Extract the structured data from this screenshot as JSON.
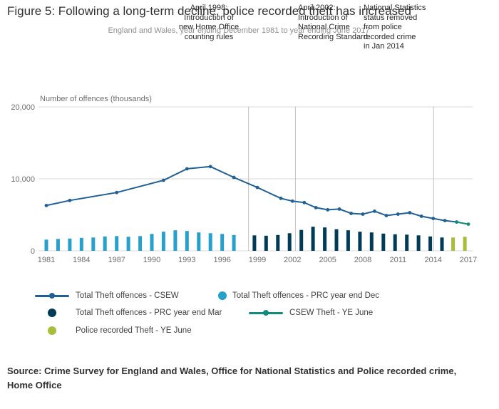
{
  "header": {
    "title": "Figure 5: Following a long-term decline, police recorded theft has increased",
    "subtitle": "England and Wales, year ending December 1981 to year ending June 2017"
  },
  "annotations": [
    {
      "text": "April 1998:\nIntroduction of\nnew Home Office\ncounting rules"
    },
    {
      "text": "April 2002:\nIntroduction of\nNational Crime\nRecording Standard"
    },
    {
      "text": "National Statistics\nstatus removed\nfrom police\nrecorded crime\nin Jan 2014"
    }
  ],
  "legend": {
    "items": [
      {
        "label": "Total Theft offences - CSEW",
        "type": "line",
        "color": "#206095"
      },
      {
        "label": "Total Theft offences - PRC year end Dec",
        "type": "dot",
        "color": "#27a0cc"
      },
      {
        "label": "Total Theft offences - PRC year end Mar",
        "type": "dot",
        "color": "#003c57"
      },
      {
        "label": "CSEW Theft - YE June",
        "type": "line",
        "color": "#118c7b"
      },
      {
        "label": "Police recorded Theft - YE June",
        "type": "dot",
        "color": "#a8bd3a"
      }
    ]
  },
  "source": "Source: Crime Survey for England and Wales, Office for National Statistics and Police recorded crime, Home Office",
  "chart_data": {
    "type": "mixed-bar-line",
    "title": "Figure 5: Following a long-term decline, police recorded theft has increased",
    "subtitle": "England and Wales, year ending December 1981 to year ending June 2017",
    "xlabel": "",
    "ylabel": "Number of offences (thousands)",
    "xlim": [
      1981,
      2017
    ],
    "ylim": [
      0,
      20000
    ],
    "yticks": [
      0,
      10000,
      20000
    ],
    "ytick_labels": [
      "0",
      "10,000",
      "20,000"
    ],
    "xticks": [
      1981,
      1984,
      1987,
      1990,
      1993,
      1996,
      1999,
      2002,
      2005,
      2008,
      2011,
      2014,
      2017
    ],
    "event_lines": [
      1998.25,
      2002.25,
      2014.04
    ],
    "grid": "horizontal",
    "legend_position": "bottom",
    "series": [
      {
        "name": "Total Theft offences - PRC year end Dec",
        "type": "bar",
        "color": "#27a0cc",
        "offset": 0,
        "points": [
          [
            1981,
            1550
          ],
          [
            1982,
            1650
          ],
          [
            1983,
            1700
          ],
          [
            1984,
            1800
          ],
          [
            1985,
            1850
          ],
          [
            1986,
            2000
          ],
          [
            1987,
            2050
          ],
          [
            1988,
            1950
          ],
          [
            1989,
            2050
          ],
          [
            1990,
            2350
          ],
          [
            1991,
            2650
          ],
          [
            1992,
            2850
          ],
          [
            1993,
            2750
          ],
          [
            1994,
            2550
          ],
          [
            1995,
            2450
          ],
          [
            1996,
            2350
          ],
          [
            1997,
            2200
          ]
        ]
      },
      {
        "name": "Total Theft offences - PRC year end Mar",
        "type": "bar",
        "color": "#003c57",
        "offset": -0.25,
        "points": [
          [
            1999,
            2150
          ],
          [
            2000,
            2100
          ],
          [
            2001,
            2200
          ],
          [
            2002,
            2450
          ],
          [
            2003,
            2900
          ],
          [
            2004,
            3350
          ],
          [
            2005,
            3250
          ],
          [
            2006,
            3000
          ],
          [
            2007,
            2850
          ],
          [
            2008,
            2650
          ],
          [
            2009,
            2550
          ],
          [
            2010,
            2400
          ],
          [
            2011,
            2300
          ],
          [
            2012,
            2250
          ],
          [
            2013,
            2150
          ],
          [
            2014,
            2000
          ],
          [
            2015,
            1850
          ]
        ]
      },
      {
        "name": "Police recorded Theft - YE June",
        "type": "bar",
        "color": "#a8bd3a",
        "offset": -0.3,
        "points": [
          [
            2016,
            1850
          ],
          [
            2017,
            1950
          ]
        ]
      },
      {
        "name": "Total Theft offences - CSEW",
        "type": "line",
        "color": "#206095",
        "points": [
          [
            1981,
            6300
          ],
          [
            1983,
            7000
          ],
          [
            1987,
            8100
          ],
          [
            1991,
            9800
          ],
          [
            1993,
            11400
          ],
          [
            1995,
            11700
          ],
          [
            1997,
            10200
          ],
          [
            1999,
            8800
          ],
          [
            2001,
            7300
          ],
          [
            2002,
            6900
          ],
          [
            2003,
            6700
          ],
          [
            2004,
            6000
          ],
          [
            2005,
            5700
          ],
          [
            2006,
            5800
          ],
          [
            2007,
            5200
          ],
          [
            2008,
            5100
          ],
          [
            2009,
            5500
          ],
          [
            2010,
            4900
          ],
          [
            2011,
            5100
          ],
          [
            2012,
            5300
          ],
          [
            2013,
            4800
          ],
          [
            2014,
            4500
          ],
          [
            2015,
            4200
          ],
          [
            2016,
            4000
          ]
        ]
      },
      {
        "name": "CSEW Theft - YE June",
        "type": "line",
        "color": "#118c7b",
        "points": [
          [
            2016,
            4000
          ],
          [
            2017,
            3700
          ]
        ]
      }
    ]
  }
}
